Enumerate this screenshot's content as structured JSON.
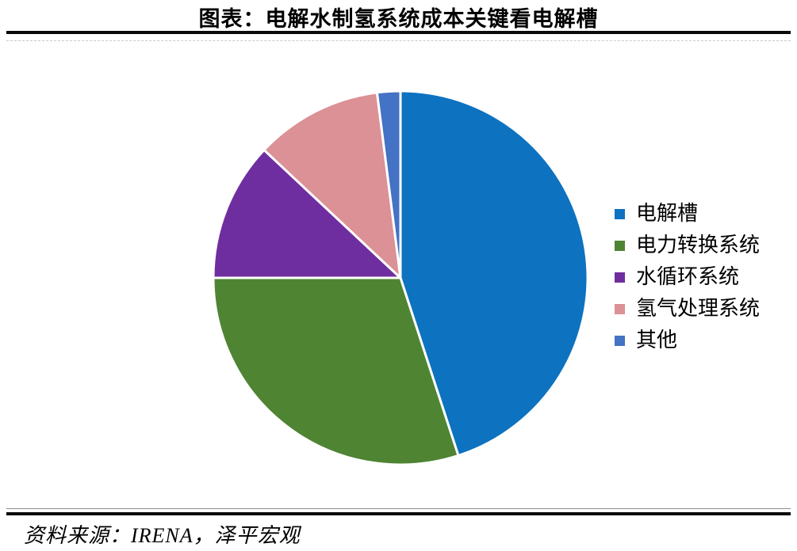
{
  "header": {
    "title": "图表：电解水制氢系统成本关键看电解槽"
  },
  "footer": {
    "source": "资料来源：IRENA，泽平宏观"
  },
  "chart_data": {
    "type": "pie",
    "title": "图表：电解水制氢系统成本关键看电解槽",
    "categories": [
      "电解槽",
      "电力转换系统",
      "水循环系统",
      "氢气处理系统",
      "其他"
    ],
    "values": [
      45,
      30,
      12,
      11,
      2
    ],
    "unit": "percent-of-total",
    "colors": [
      "#0d72bf",
      "#4f8433",
      "#6f2ea0",
      "#db9196",
      "#4472c4"
    ],
    "start_angle_deg": 0,
    "direction": "clockwise",
    "slice_border_color": "#ffffff",
    "legend_position": "right",
    "legend_entries": [
      "电解槽",
      "电力转换系统",
      "水循环系统",
      "氢气处理系统",
      "其他"
    ],
    "source": "资料来源：IRENA，泽平宏观"
  }
}
